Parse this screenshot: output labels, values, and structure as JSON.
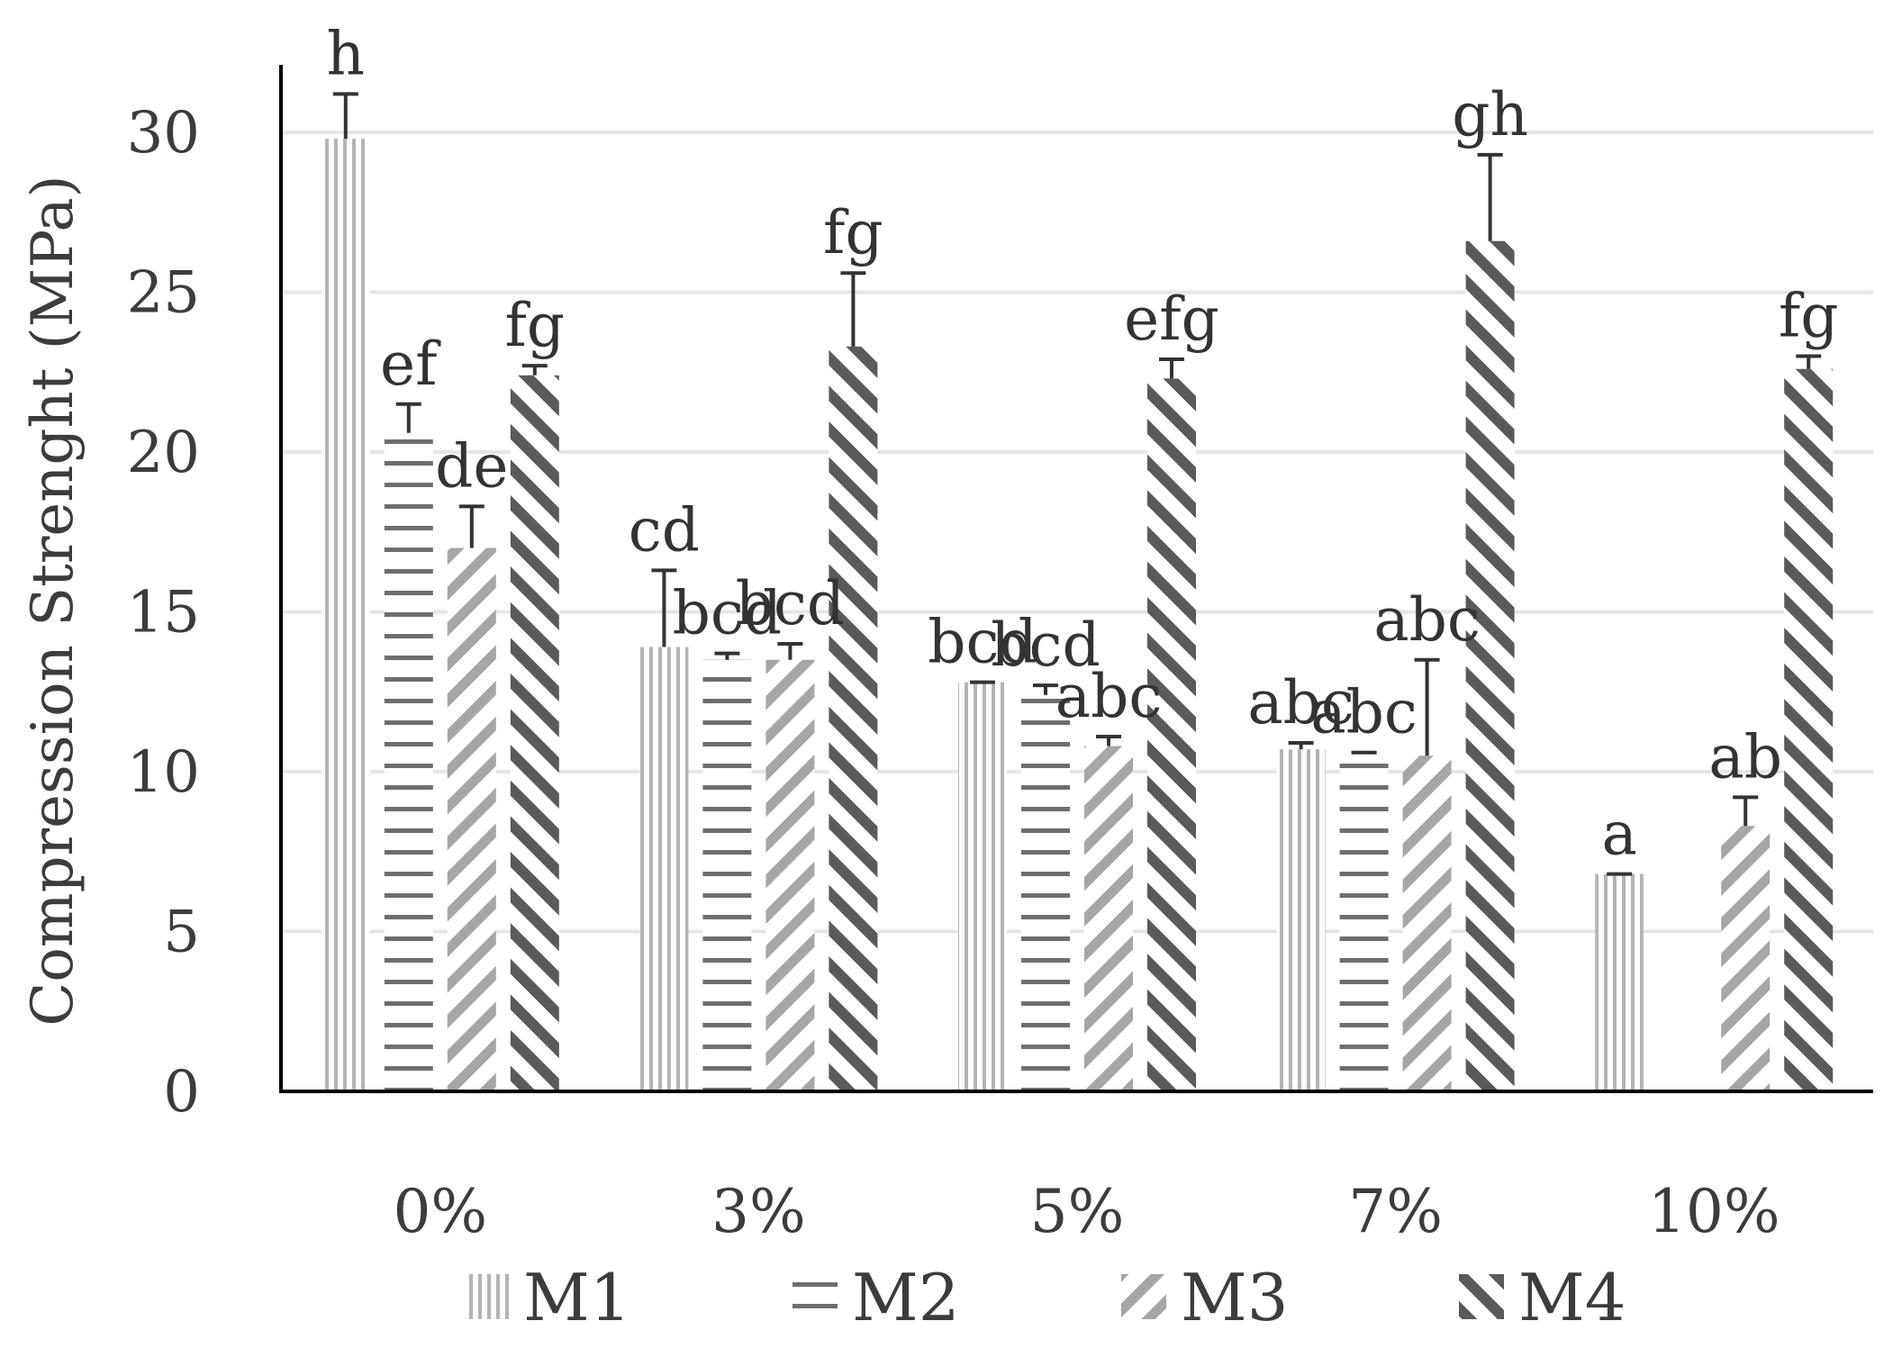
{
  "chart_data": {
    "type": "bar",
    "ylabel": "Compression Strenght (MPa)",
    "xlabel": "",
    "ylim": [
      0,
      30
    ],
    "yticks": [
      0,
      5,
      10,
      15,
      20,
      25,
      30
    ],
    "categories": [
      "0%",
      "3%",
      "5%",
      "7%",
      "10%"
    ],
    "grid": "horizontal",
    "legend_position": "bottom",
    "series": [
      {
        "name": "M1",
        "pattern": "vertical-lines",
        "color": "#b4b4b4",
        "values": [
          29.8,
          13.9,
          12.8,
          10.7,
          6.8
        ],
        "errors": [
          1.4,
          2.4,
          0.0,
          0.2,
          0.0
        ],
        "labels": [
          "h",
          "cd",
          "bcd",
          "abc",
          "a"
        ]
      },
      {
        "name": "M2",
        "pattern": "horizontal-lines",
        "color": "#6e6e6e",
        "values": [
          20.6,
          13.5,
          12.4,
          10.6,
          null
        ],
        "errors": [
          0.9,
          0.2,
          0.3,
          0.0,
          null
        ],
        "labels": [
          "ef",
          "bcd",
          "bcd",
          "abc",
          ""
        ]
      },
      {
        "name": "M3",
        "pattern": "downward-diagonal",
        "color": "#a6a6a6",
        "values": [
          17.0,
          13.5,
          10.8,
          10.5,
          8.3
        ],
        "errors": [
          1.3,
          0.5,
          0.3,
          3.0,
          0.9
        ],
        "labels": [
          "de",
          "bcd",
          "abc",
          "abc",
          "ab"
        ]
      },
      {
        "name": "M4",
        "pattern": "upward-diagonal",
        "color": "#5a5a5a",
        "values": [
          22.4,
          23.3,
          22.3,
          26.6,
          22.6
        ],
        "errors": [
          0.3,
          2.3,
          0.6,
          2.7,
          0.4
        ],
        "labels": [
          "fg",
          "fg",
          "efg",
          "gh",
          "fg"
        ]
      }
    ]
  }
}
